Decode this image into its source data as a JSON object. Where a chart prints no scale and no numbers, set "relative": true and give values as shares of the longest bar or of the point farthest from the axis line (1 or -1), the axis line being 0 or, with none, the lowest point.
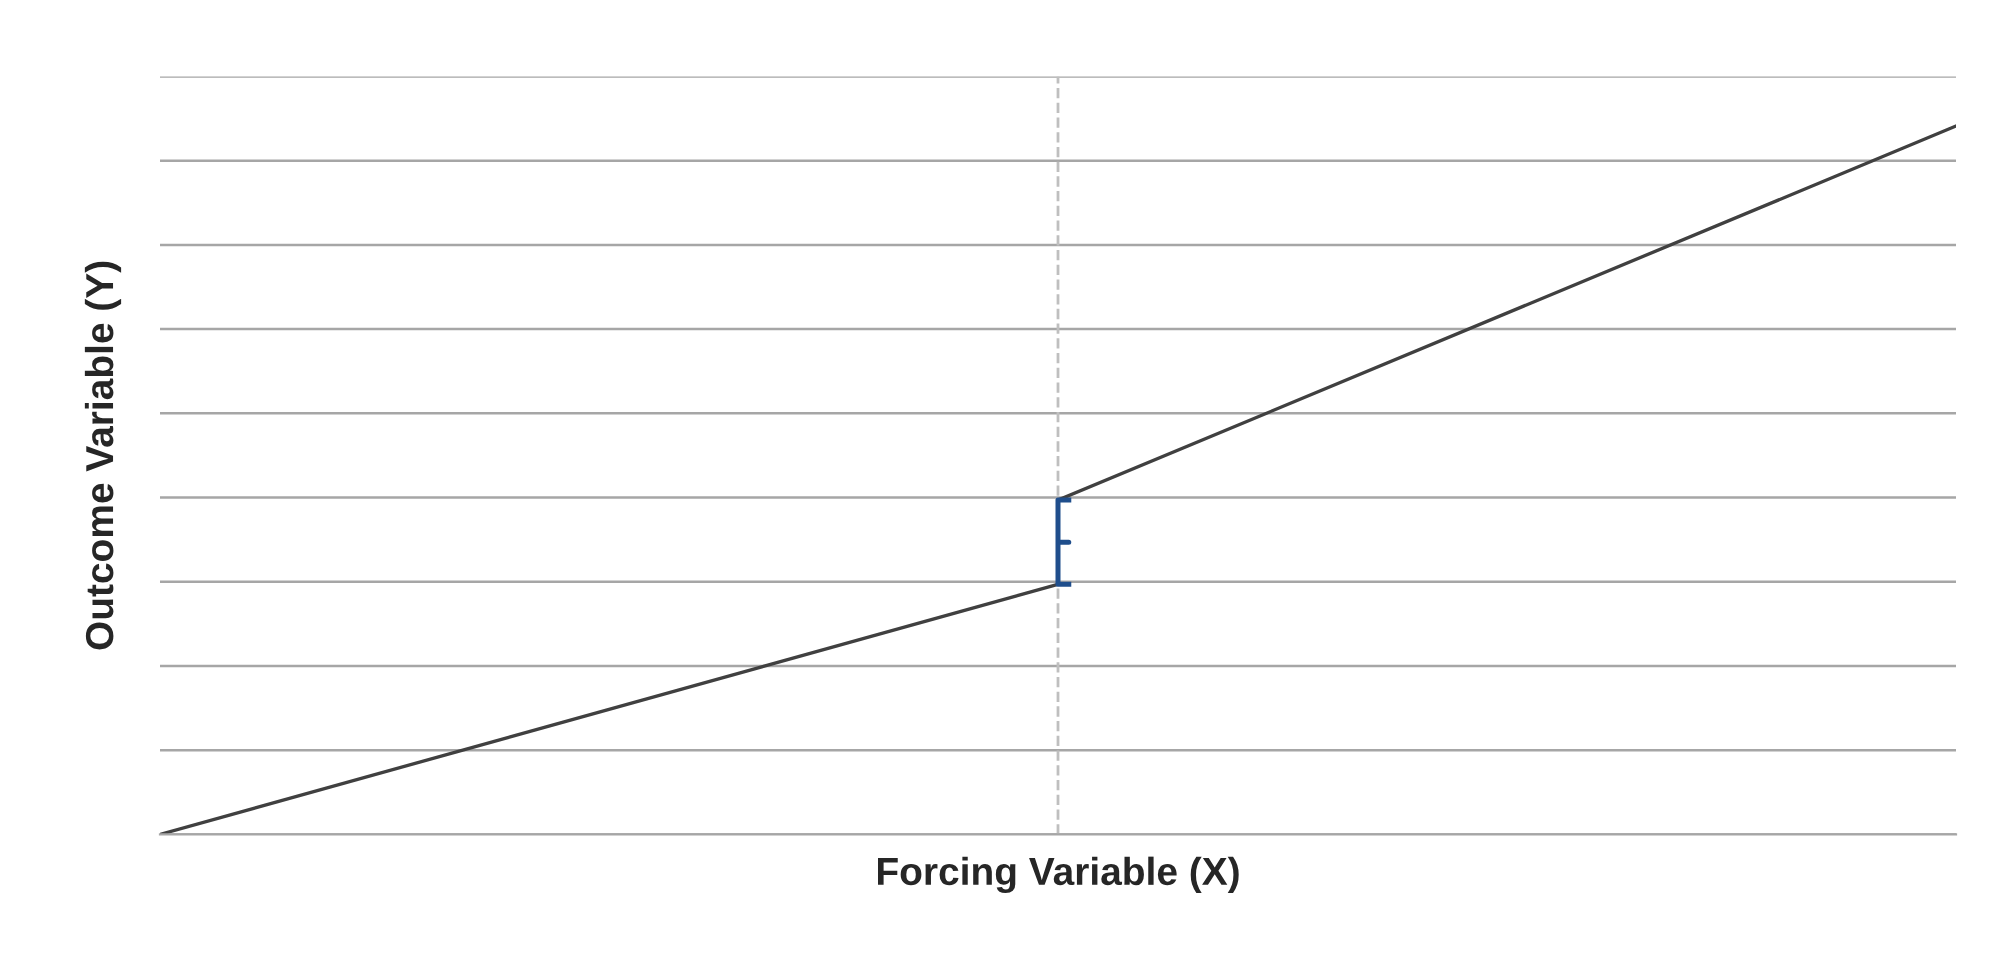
{
  "chart_data": {
    "type": "line",
    "relative": true,
    "xlabel": "Forcing Variable (X)",
    "ylabel": "Outcome Variable (Y)",
    "categories": [
      null,
      null,
      null
    ],
    "series": [
      {
        "color": "#404040",
        "values": [
          0,
          0.353,
          null
        ]
      },
      {
        "color": "#404040",
        "values": [
          null,
          0.472,
          1
        ]
      }
    ],
    "grid": "y",
    "tick_labels": false,
    "marker": "none",
    "line_style": "solid"
  }
}
